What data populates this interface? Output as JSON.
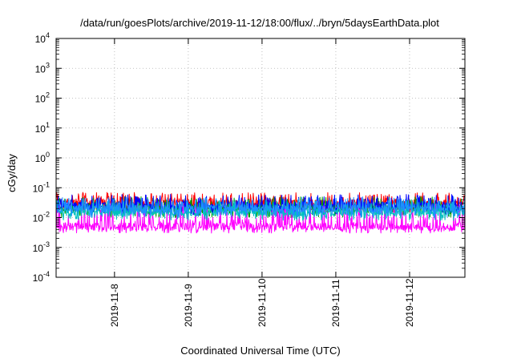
{
  "chart_data": {
    "type": "line",
    "title": "/data/run/goesPlots/archive/2019-11-12/18:00/flux/../bryn/5daysEarthData.plot",
    "xlabel": "Coordinated Universal Time (UTC)",
    "ylabel": "cGy/day",
    "yscale": "log",
    "ylim": [
      0.0001,
      10000
    ],
    "xlim": [
      "2019-11-07T05:00",
      "2019-11-12T18:00"
    ],
    "x_ticks": [
      "2019-11-8",
      "2019-11-9",
      "2019-11-10",
      "2019-11-11",
      "2019-11-12"
    ],
    "y_ticks": [
      {
        "base": "10",
        "exp": "-4"
      },
      {
        "base": "10",
        "exp": "-3"
      },
      {
        "base": "10",
        "exp": "-2"
      },
      {
        "base": "10",
        "exp": "-1"
      },
      {
        "base": "10",
        "exp": "0"
      },
      {
        "base": "10",
        "exp": "1"
      },
      {
        "base": "10",
        "exp": "2"
      },
      {
        "base": "10",
        "exp": "3"
      },
      {
        "base": "10",
        "exp": "4"
      }
    ],
    "grid": true,
    "series": [
      {
        "color": "#ff0000",
        "typical": 0.03,
        "min": 0.015,
        "max": 0.07
      },
      {
        "color": "#00a000",
        "typical": 0.02,
        "min": 0.01,
        "max": 0.05
      },
      {
        "color": "#0000ff",
        "typical": 0.025,
        "min": 0.012,
        "max": 0.06
      },
      {
        "color": "#ff00ff",
        "typical": 0.005,
        "min": 0.003,
        "max": 0.03
      },
      {
        "color": "#00c0c0",
        "typical": 0.015,
        "min": 0.008,
        "max": 0.04
      },
      {
        "color": "#1e90ff",
        "typical": 0.02,
        "min": 0.01,
        "max": 0.05
      }
    ]
  }
}
